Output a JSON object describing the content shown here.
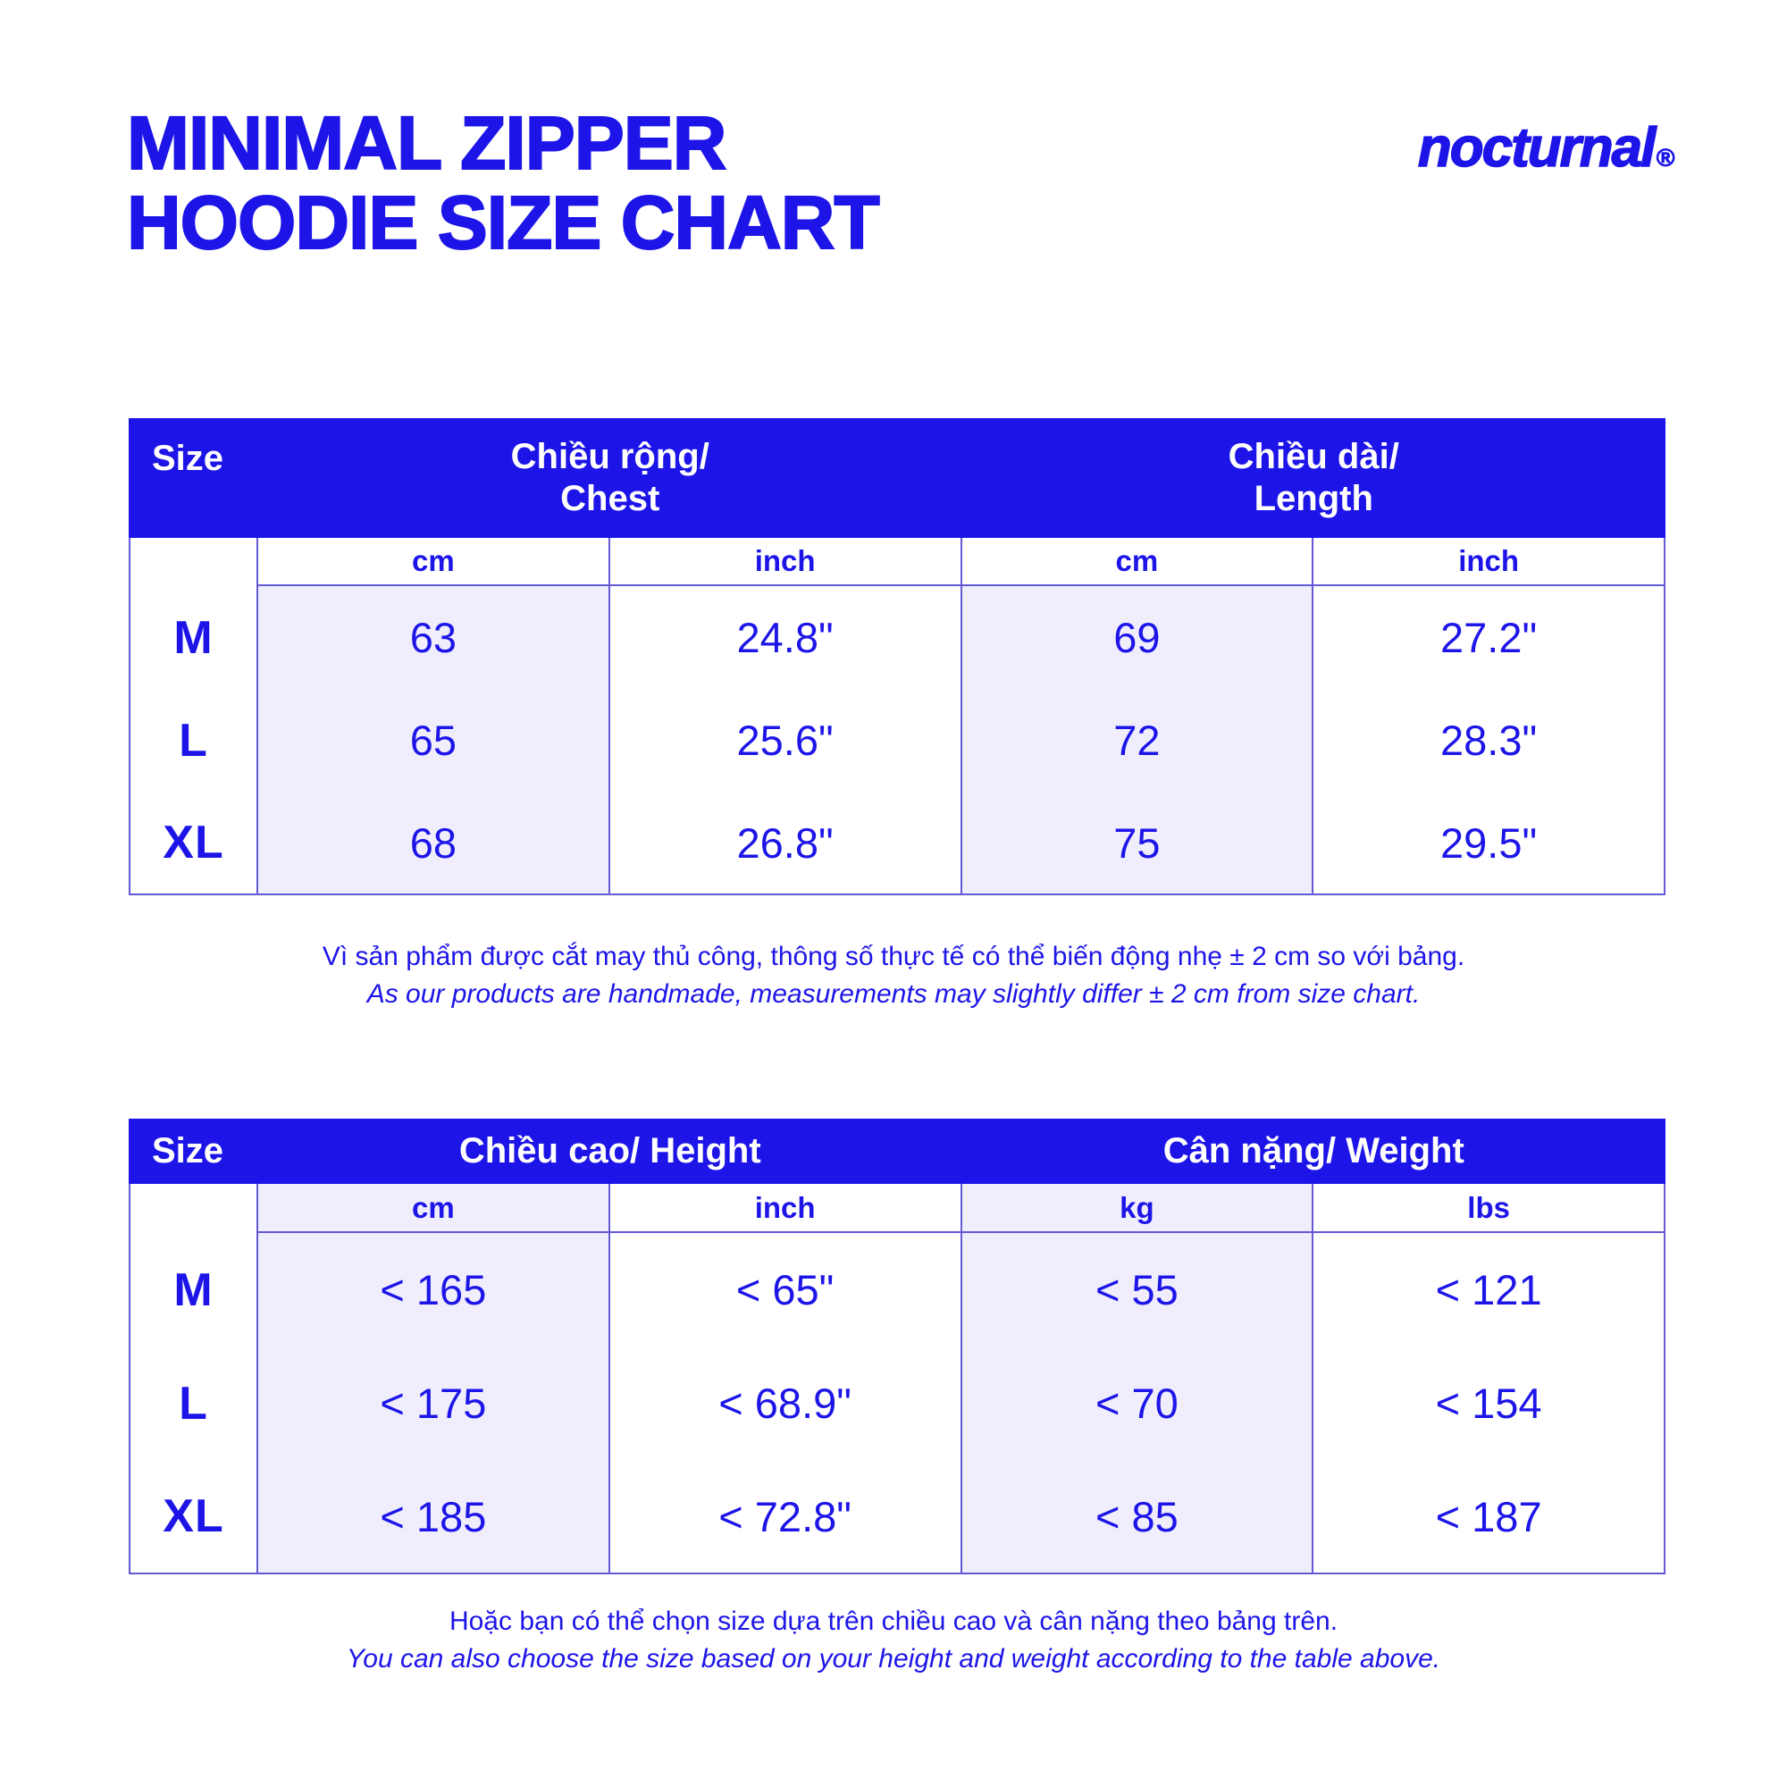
{
  "page": {
    "title_line1": "MINIMAL ZIPPER",
    "title_line2": "HOODIE SIZE CHART",
    "brand": "nocturnal",
    "brand_mark": "®"
  },
  "colors": {
    "primary_blue": "#1d15e8",
    "band_text": "#ffffff",
    "shaded_column": "#f0eefc",
    "grid_line": "#6459d6"
  },
  "size_table": {
    "corner_label": "Size",
    "groups": [
      {
        "label_vi": "Chiều rộng/",
        "label_en": "Chest"
      },
      {
        "label_vi": "Chiều dài/",
        "label_en": "Length"
      }
    ],
    "units": [
      "cm",
      "inch",
      "cm",
      "inch"
    ],
    "rows": [
      {
        "size": "M",
        "values": [
          "63",
          "24.8\"",
          "69",
          "27.2\""
        ]
      },
      {
        "size": "L",
        "values": [
          "65",
          "25.6\"",
          "72",
          "28.3\""
        ]
      },
      {
        "size": "XL",
        "values": [
          "68",
          "26.8\"",
          "75",
          "29.5\""
        ]
      }
    ],
    "note_vi": "Vì sản phẩm được cắt may thủ công, thông số thực tế có thể biến động nhẹ ± 2 cm so với bảng.",
    "note_en": "As our products are handmade, measurements may slightly differ ± 2 cm from size chart."
  },
  "body_table": {
    "corner_label": "Size",
    "groups": [
      {
        "label": "Chiều cao/ Height"
      },
      {
        "label": "Cân nặng/ Weight"
      }
    ],
    "units": [
      "cm",
      "inch",
      "kg",
      "lbs"
    ],
    "rows": [
      {
        "size": "M",
        "values": [
          "< 165",
          "< 65\"",
          "< 55",
          "< 121"
        ]
      },
      {
        "size": "L",
        "values": [
          "< 175",
          "< 68.9\"",
          "< 70",
          "< 154"
        ]
      },
      {
        "size": "XL",
        "values": [
          "< 185",
          "< 72.8\"",
          "< 85",
          "< 187"
        ]
      }
    ],
    "note_vi": "Hoặc bạn có thể chọn size dựa trên chiều cao và cân nặng theo bảng trên.",
    "note_en": "You can also choose the size based on your height and weight according to the table above."
  }
}
